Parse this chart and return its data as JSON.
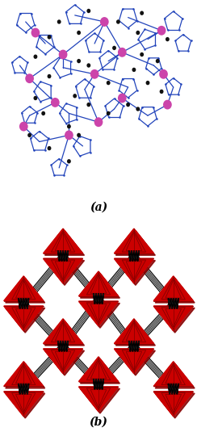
{
  "fig_width": 2.44,
  "fig_height": 5.4,
  "dpi": 100,
  "bg_color": "#ffffff",
  "label_a": "(a)",
  "label_b": "(b)",
  "blue": "#2244bb",
  "pink": "#cc44aa",
  "black": "#111111",
  "red": "#cc0000",
  "dark_red": "#880000"
}
